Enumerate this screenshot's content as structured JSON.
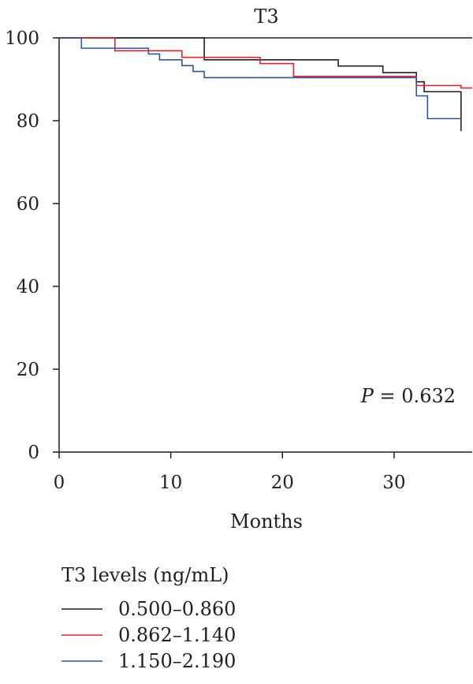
{
  "chart_data": {
    "type": "line",
    "title": "T3",
    "xlabel": "Months",
    "ylabel": "",
    "xlim": [
      0,
      37
    ],
    "ylim": [
      0,
      100
    ],
    "x_ticks": [
      "0",
      "10",
      "20",
      "30"
    ],
    "y_ticks": [
      "0",
      "20",
      "40",
      "60",
      "80",
      "100"
    ],
    "annotation": {
      "italic": "P",
      "rest": " = 0.632"
    },
    "legend": {
      "title": "T3 levels (ng/mL)",
      "placement": "bottom-left"
    },
    "grid": false,
    "series": [
      {
        "name": "0.500–0.860",
        "color": "#231f20",
        "steps": [
          [
            0,
            100
          ],
          [
            13,
            94.7
          ],
          [
            25,
            93.2
          ],
          [
            29,
            91.6
          ],
          [
            32,
            89.4
          ],
          [
            32.7,
            87.0
          ],
          [
            36,
            77.5
          ]
        ],
        "end_x": 36
      },
      {
        "name": "0.862–1.140",
        "color": "#e8202a",
        "steps": [
          [
            0,
            100
          ],
          [
            5,
            96.9
          ],
          [
            8,
            96.9
          ],
          [
            11,
            95.3
          ],
          [
            18,
            93.8
          ],
          [
            21,
            90.7
          ],
          [
            32,
            88.5
          ],
          [
            36,
            87.9
          ]
        ],
        "end_x": 37
      },
      {
        "name": "1.150–2.190",
        "color": "#2e54a4",
        "steps": [
          [
            0,
            100
          ],
          [
            2,
            97.5
          ],
          [
            8,
            96.1
          ],
          [
            9,
            94.7
          ],
          [
            11,
            93.3
          ],
          [
            12,
            91.9
          ],
          [
            13,
            90.4
          ],
          [
            32,
            86.0
          ],
          [
            33,
            80.5
          ]
        ],
        "end_x": 36
      }
    ]
  }
}
